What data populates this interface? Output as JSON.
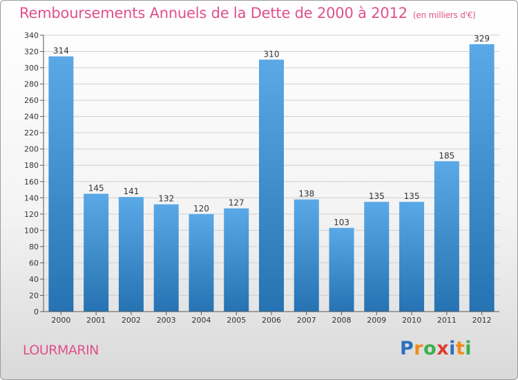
{
  "title": "Remboursements Annuels de la Dette de 2000 à 2012",
  "unit": "(en milliers d'€)",
  "city": "LOURMARIN",
  "brand": {
    "letters": [
      "P",
      "r",
      "o",
      "x",
      "i",
      "t",
      "i"
    ],
    "colors": [
      "#2c6fc0",
      "#f08a1c",
      "#3fae49",
      "#e03a2f",
      "#2c6fc0",
      "#f08a1c",
      "#3fae49"
    ]
  },
  "colors": {
    "bar_top": "#5aa9e6",
    "bar_bottom": "#2672b2",
    "accent": "#e0508a"
  },
  "chart_data": {
    "type": "bar",
    "categories": [
      "2000",
      "2001",
      "2002",
      "2003",
      "2004",
      "2005",
      "2006",
      "2007",
      "2008",
      "2009",
      "2010",
      "2011",
      "2012"
    ],
    "values": [
      314,
      145,
      141,
      132,
      120,
      127,
      310,
      138,
      103,
      135,
      135,
      185,
      329
    ],
    "ylim": [
      0,
      340
    ],
    "ytick_step": 20,
    "grid": true
  }
}
